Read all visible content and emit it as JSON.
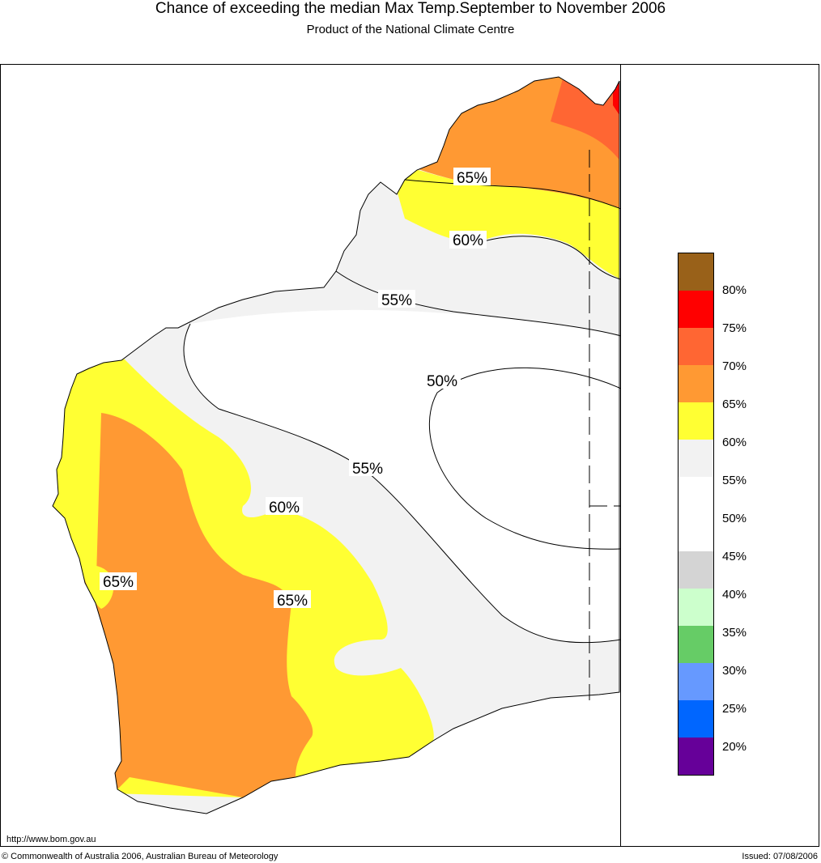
{
  "header": {
    "title": "Chance of exceeding the median Max Temp.September to November 2006",
    "subtitle": "Product of the National Climate Centre"
  },
  "map": {
    "contour_labels": [
      {
        "id": "c65-north",
        "text": "65%"
      },
      {
        "id": "c60-north",
        "text": "60%"
      },
      {
        "id": "c55-north",
        "text": "55%"
      },
      {
        "id": "c50",
        "text": "50%"
      },
      {
        "id": "c55-mid",
        "text": "55%"
      },
      {
        "id": "c60-mid",
        "text": "60%"
      },
      {
        "id": "c65-west",
        "text": "65%"
      },
      {
        "id": "c65-mid",
        "text": "65%"
      }
    ]
  },
  "legend": {
    "swatches": [
      {
        "color": "#996119"
      },
      {
        "color": "#ff0000"
      },
      {
        "color": "#ff6633"
      },
      {
        "color": "#ff9933"
      },
      {
        "color": "#ffff33"
      },
      {
        "color": "#f2f2f2"
      },
      {
        "color": "#ffffff"
      },
      {
        "color": "#ffffff"
      },
      {
        "color": "#d4d4d4"
      },
      {
        "color": "#ccffcc"
      },
      {
        "color": "#66cc66"
      },
      {
        "color": "#6699ff"
      },
      {
        "color": "#0066ff"
      },
      {
        "color": "#660099"
      }
    ],
    "labels": [
      "80%",
      "75%",
      "70%",
      "65%",
      "60%",
      "55%",
      "50%",
      "45%",
      "40%",
      "35%",
      "30%",
      "25%",
      "20%"
    ]
  },
  "footer": {
    "url": "http://www.bom.gov.au",
    "copyright": "© Commonwealth of Australia 2006, Australian Bureau of Meteorology",
    "issued": "Issued: 07/08/2006"
  }
}
